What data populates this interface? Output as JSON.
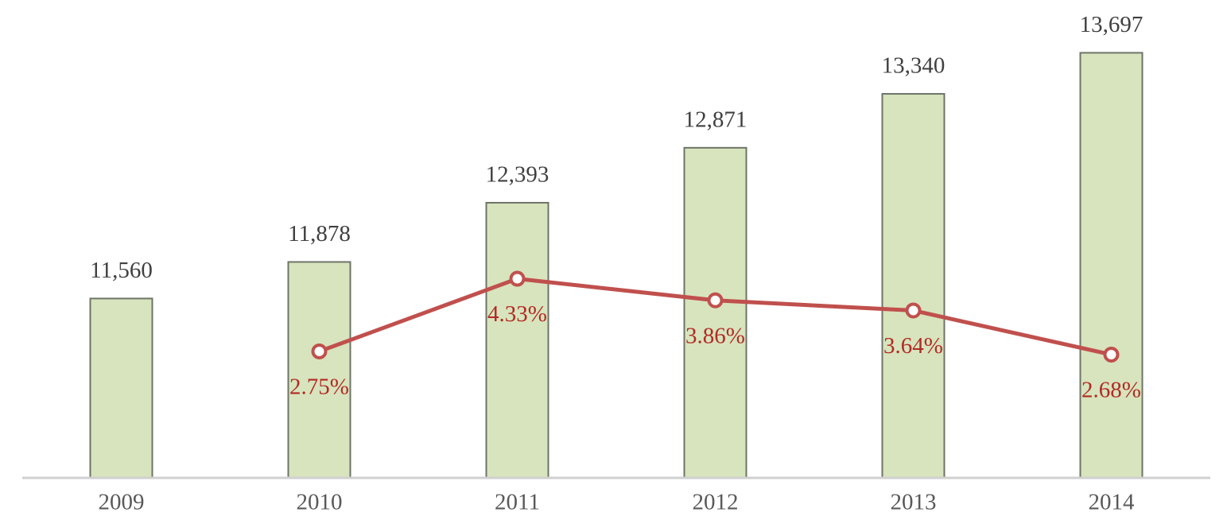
{
  "chart_data": {
    "type": "bar-line",
    "categories": [
      "2009",
      "2010",
      "2011",
      "2012",
      "2013",
      "2014"
    ],
    "series": [
      {
        "type": "bar",
        "color": "#d7e4bd",
        "values": [
          11560,
          11878,
          12393,
          12871,
          13340,
          13697
        ],
        "value_labels": [
          "11,560",
          "11,878",
          "12,393",
          "12,871",
          "13,340",
          "13,697"
        ]
      },
      {
        "type": "line",
        "axis": "y2",
        "color": "#c0504d",
        "values": [
          null,
          2.75,
          4.33,
          3.86,
          3.64,
          2.68
        ],
        "value_labels": [
          null,
          "2.75%",
          "4.33%",
          "3.86%",
          "3.64%",
          "2.68%"
        ]
      }
    ],
    "ylim": [
      10000,
      14000
    ],
    "y2lim": [
      0,
      10
    ],
    "grid": false
  }
}
